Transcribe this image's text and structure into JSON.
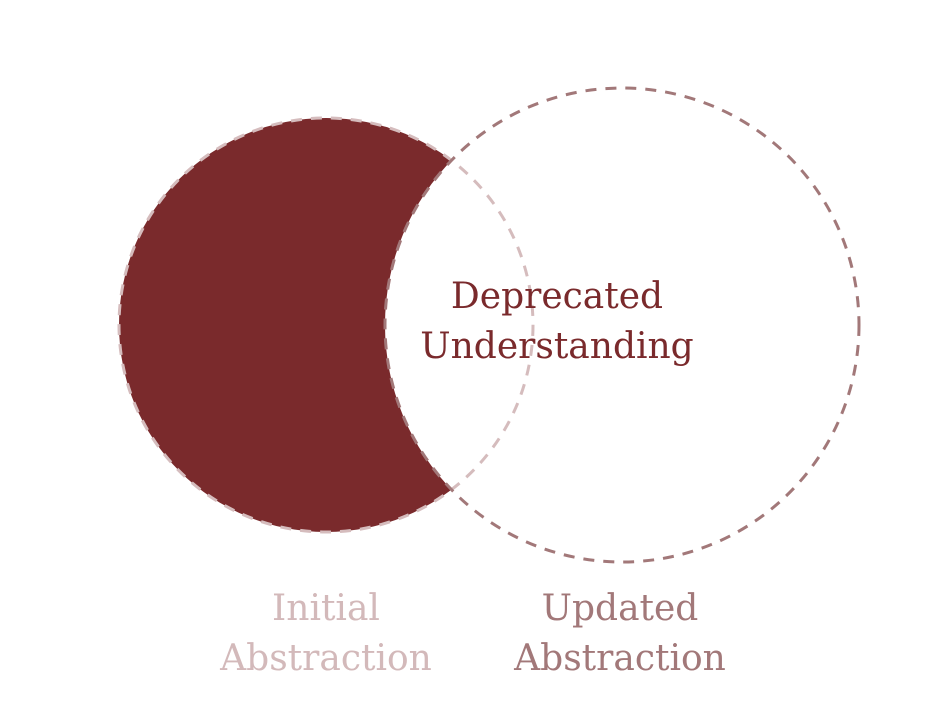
{
  "colors": {
    "background": "#ffffff",
    "deprecated_fill": "#7a2a2c",
    "initial_stroke": "#d5bcbd",
    "updated_stroke": "#a27879",
    "deprecated_text": "#7a2a2c",
    "initial_text": "#d3b9ba",
    "updated_text": "#a27879"
  },
  "labels": {
    "deprecated": {
      "line1": "Deprecated",
      "line2": "Understanding"
    },
    "initial": {
      "line1": "Initial",
      "line2": "Abstraction"
    },
    "updated": {
      "line1": "Updated",
      "line2": "Abstraction"
    }
  }
}
